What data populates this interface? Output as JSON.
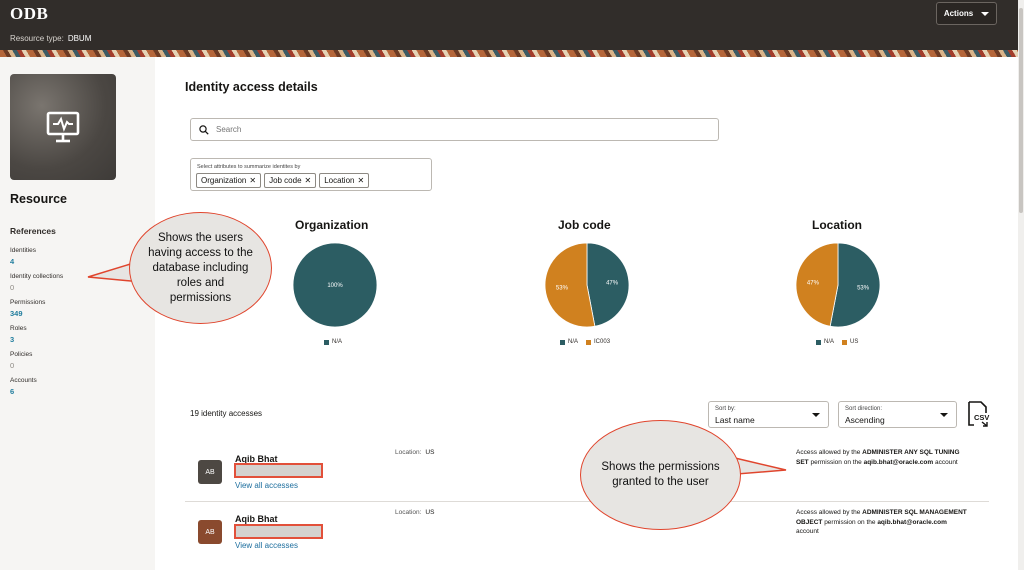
{
  "header": {
    "brand": "ODB",
    "resource_type_label": "Resource type:",
    "resource_type_value": "DBUM",
    "actions_label": "Actions"
  },
  "sidebar": {
    "resource_title": "Resource",
    "references_title": "References",
    "refs": [
      {
        "label": "Identities",
        "value": "4"
      },
      {
        "label": "Identity collections",
        "value": "0"
      },
      {
        "label": "Permissions",
        "value": "349"
      },
      {
        "label": "Roles",
        "value": "3"
      },
      {
        "label": "Policies",
        "value": "0"
      },
      {
        "label": "Accounts",
        "value": "6"
      }
    ]
  },
  "main": {
    "title": "Identity access details",
    "search_placeholder": "Search",
    "attributes_label": "Select attributes to summarize identites by",
    "attribute_chips": [
      "Organization",
      "Job code",
      "Location"
    ],
    "count_text": "19 identity accesses",
    "sort_by": {
      "label": "Sort by:",
      "value": "Last name"
    },
    "sort_direction": {
      "label": "Sort direction:",
      "value": "Ascending"
    }
  },
  "colors": {
    "teal": "#2c5d63",
    "orange": "#d0811f",
    "callout_border": "#e0452d"
  },
  "chart_data": [
    {
      "type": "pie",
      "title": "Organization",
      "categories": [
        "N/A"
      ],
      "values": [
        100
      ],
      "labels": [
        "100%"
      ]
    },
    {
      "type": "pie",
      "title": "Job code",
      "categories": [
        "N/A",
        "IC003"
      ],
      "values": [
        47,
        53
      ],
      "labels": [
        "47%",
        "53%"
      ]
    },
    {
      "type": "pie",
      "title": "Location",
      "categories": [
        "N/A",
        "US"
      ],
      "values": [
        53,
        47
      ],
      "labels": [
        "53%",
        "47%"
      ]
    }
  ],
  "rows": [
    {
      "initials": "AB",
      "avatar_color": "#4d4843",
      "name": "Aqib Bhat",
      "link": "View all accesses",
      "location_label": "Location:",
      "location_value": "US",
      "perm_prefix": "Access allowed by the",
      "perm_name": "ADMINISTER ANY SQL TUNING SET",
      "perm_mid": "permission on the",
      "account": "aqib.bhat@oracle.com",
      "perm_suffix": "account"
    },
    {
      "initials": "AB",
      "avatar_color": "#8a4a2e",
      "name": "Aqib Bhat",
      "link": "View all accesses",
      "location_label": "Location:",
      "location_value": "US",
      "perm_prefix": "Access allowed by the",
      "perm_name": "ADMINISTER SQL MANAGEMENT OBJECT",
      "perm_mid": "permission on the",
      "account": "aqib.bhat@oracle.com",
      "perm_suffix": "account"
    }
  ],
  "callouts": [
    "Shows the users having access to the database including roles and permissions",
    "Shows the permissions granted to the user"
  ]
}
